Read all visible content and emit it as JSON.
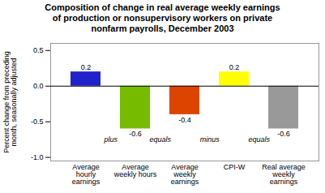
{
  "chart_data": {
    "type": "bar",
    "title": "Composition of change in real average weekly earnings\nof production or nonsupervisory workers on private\nnonfarm payrolls, December 2003",
    "ylabel": "Percent change from preceding\nmonth, seasonally adjusted",
    "categories": [
      "Average\nhourly\nearnings",
      "Average\nweekly hours",
      "Average\nweekly\nearnings",
      "CPI-W",
      "Real average\nweekly\nearnings"
    ],
    "values": [
      0.2,
      -0.6,
      -0.4,
      0.2,
      -0.6
    ],
    "colors": [
      "#2222cc",
      "#77bb00",
      "#dd4400",
      "#ffff00",
      "#999999"
    ],
    "annotations": [
      "plus",
      "equals",
      "minus",
      "equals"
    ],
    "ylim": [
      -1.05,
      0.6
    ],
    "yticks": [
      {
        "value": -1.0,
        "label": "-1.0"
      },
      -0.5,
      {
        "value": 0.0,
        "label": "0.0"
      },
      0.5
    ],
    "data_labels": true,
    "grid": false
  }
}
